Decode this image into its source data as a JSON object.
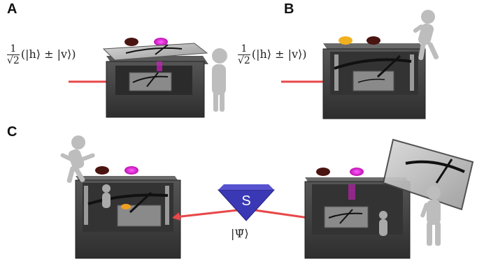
{
  "panels": {
    "a": {
      "label": "A"
    },
    "b": {
      "label": "B"
    },
    "c": {
      "label": "C"
    }
  },
  "input_state": {
    "fraction_num": "1",
    "fraction_den": "√2",
    "expression": "(|h⟩ ± |v⟩)"
  },
  "source": {
    "label": "S"
  },
  "output_state": {
    "label": "|Ψ̃⟩"
  },
  "colors": {
    "box": "#3a3a3a",
    "box_top": "#4d4d4d",
    "beam": "#e8484a",
    "source": "#3b38b5",
    "magenta_button": "#e020d0",
    "brown_button": "#4a1410",
    "yellow_button": "#f0b020",
    "observer": "#bdbdbd"
  }
}
